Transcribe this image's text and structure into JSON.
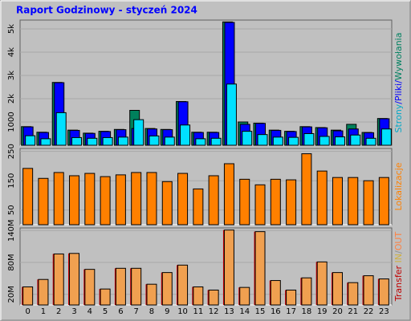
{
  "chart_data": {
    "type": "bar",
    "title": "Raport Godzinowy -  styczeń 2024",
    "categories": [
      "0",
      "1",
      "2",
      "3",
      "4",
      "5",
      "6",
      "7",
      "8",
      "9",
      "10",
      "11",
      "12",
      "13",
      "14",
      "15",
      "16",
      "17",
      "18",
      "19",
      "20",
      "21",
      "22",
      "23"
    ],
    "grid": true,
    "panels": [
      {
        "ylim": [
          0,
          5380
        ],
        "yticks": [
          1000,
          {
            "value": 2000,
            "label": "2k"
          },
          {
            "value": 3000,
            "label": "3k"
          },
          {
            "value": 4000,
            "label": "4k"
          },
          {
            "value": 5000,
            "label": "5k"
          }
        ],
        "legend": [
          {
            "text": "Strony",
            "color": "#00a8c8"
          },
          {
            "text": "/",
            "color": "#0000ff"
          },
          {
            "text": "Pliki",
            "color": "#0000ff"
          },
          {
            "text": "/",
            "color": "#0000ff"
          },
          {
            "text": "Wywołania",
            "color": "#008060"
          }
        ],
        "series": [
          {
            "name": "Wywołania",
            "color": "#00805c",
            "values": [
              800,
              560,
              2700,
              650,
              520,
              600,
              680,
              1500,
              720,
              680,
              1880,
              560,
              560,
              5300,
              1000,
              950,
              650,
              600,
              800,
              760,
              650,
              900,
              550,
              1150
            ]
          },
          {
            "name": "Pliki",
            "color": "#0000ff",
            "values": [
              790,
              550,
              2690,
              640,
              510,
              590,
              670,
              720,
              700,
              670,
              1870,
              550,
              550,
              5280,
              900,
              940,
              640,
              590,
              790,
              750,
              620,
              700,
              540,
              1140
            ]
          },
          {
            "name": "Strony",
            "color": "#00e0ff",
            "values": [
              410,
              280,
              1400,
              330,
              300,
              330,
              350,
              1100,
              400,
              350,
              870,
              280,
              300,
              2630,
              600,
              460,
              350,
              340,
              500,
              380,
              360,
              440,
              300,
              700
            ]
          }
        ]
      },
      {
        "ylim": [
          0,
          260
        ],
        "yticks": [
          50,
          150,
          250
        ],
        "legend": [
          {
            "text": "Lokalizacje",
            "color": "#ff8000"
          }
        ],
        "series": [
          {
            "name": "Lokalizacje",
            "color": "#ff8000",
            "values": [
              192,
              158,
              178,
              167,
              175,
              164,
              170,
              178,
              178,
              147,
              175,
              122,
              167,
              208,
              155,
              136,
              155,
              153,
              242,
              183,
              161,
              161,
              150,
              161
            ]
          }
        ]
      },
      {
        "ylim": [
          0,
          145
        ],
        "yticks": [
          {
            "value": 20,
            "label": "20M"
          },
          {
            "value": 80,
            "label": "80M"
          },
          {
            "value": 140,
            "label": "140M"
          }
        ],
        "legend": [
          {
            "text": "Transfer",
            "color": "#c00000"
          },
          {
            "text": " IN",
            "color": "#d0b040"
          },
          {
            "text": "/",
            "color": "#909090"
          },
          {
            "text": "OUT",
            "color": "#ff8040"
          }
        ],
        "series": [
          {
            "name": "Transfer",
            "color": "#f0a050",
            "edge_color": "#cc0000",
            "values": [
              34,
              48,
              96,
              97,
              67,
              30,
              69,
              69,
              39,
              61,
              75,
              34,
              28,
              141,
              33,
              138,
              46,
              28,
              51,
              81,
              61,
              42,
              55,
              49
            ]
          }
        ]
      }
    ]
  }
}
